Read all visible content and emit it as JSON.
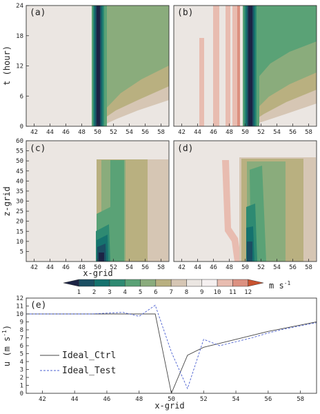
{
  "colormap": {
    "colors": [
      "#1c2445",
      "#1b4f63",
      "#15726e",
      "#2e8a72",
      "#5aa276",
      "#8aac7c",
      "#b9b080",
      "#d6c6b4",
      "#ebe6e2",
      "#f5f0f0",
      "#e8bcb0",
      "#dc9080",
      "#c8522f"
    ],
    "ticks": [
      "1",
      "2",
      "3",
      "4",
      "5",
      "6",
      "7",
      "8",
      "9",
      "10",
      "11",
      "12"
    ],
    "unit_text": "m s",
    "unit_exp": "-1"
  },
  "panels": [
    {
      "id": "a",
      "label": "(a)"
    },
    {
      "id": "b",
      "label": "(b)"
    },
    {
      "id": "c",
      "label": "(c)"
    },
    {
      "id": "d",
      "label": "(d)"
    },
    {
      "id": "e",
      "label": "(e)"
    }
  ],
  "top_axes": {
    "x_ticks": [
      "42",
      "44",
      "46",
      "48",
      "50",
      "52",
      "54",
      "56",
      "58"
    ],
    "y_ticks": [
      "0",
      "6",
      "12",
      "18",
      "24"
    ],
    "ylabel": "t (hour)"
  },
  "mid_axes": {
    "x_ticks": [
      "42",
      "44",
      "46",
      "48",
      "50",
      "52",
      "54",
      "56",
      "58"
    ],
    "y_ticks": [
      "5",
      "10",
      "15",
      "20",
      "25",
      "30",
      "35",
      "40",
      "45",
      "50",
      "55",
      "60"
    ],
    "ylabel": "z-grid",
    "xlabel": "x-grid"
  },
  "chart_data": {
    "type": "line",
    "xlabel": "x-grid",
    "ylabel_text": "u (m s",
    "ylabel_exp": "-1",
    "ylabel_close": ")",
    "xlim": [
      41,
      59
    ],
    "ylim": [
      0,
      12
    ],
    "x_ticks": [
      "42",
      "44",
      "46",
      "48",
      "50",
      "52",
      "54",
      "56",
      "58"
    ],
    "y_ticks": [
      "0",
      "1",
      "2",
      "3",
      "4",
      "5",
      "6",
      "7",
      "8",
      "9",
      "10",
      "11",
      "12"
    ],
    "series": [
      {
        "name": "Ideal_Ctrl",
        "color": "#444444",
        "dash": "solid",
        "x": [
          41,
          42,
          43,
          44,
          45,
          46,
          47,
          48,
          49,
          50,
          51,
          52,
          53,
          54,
          55,
          56,
          57,
          58,
          59
        ],
        "y": [
          10,
          10,
          10,
          10,
          10,
          10,
          10,
          10,
          10,
          0,
          4.8,
          5.8,
          6.3,
          6.8,
          7.3,
          7.8,
          8.2,
          8.6,
          9.0
        ]
      },
      {
        "name": "Ideal_Test",
        "color": "#4a5fd0",
        "dash": "dashed",
        "x": [
          41,
          42,
          43,
          44,
          45,
          46,
          47,
          48,
          49,
          50,
          51,
          52,
          53,
          54,
          55,
          56,
          57,
          58,
          59
        ],
        "y": [
          10,
          10,
          10,
          10,
          10,
          10.1,
          10.2,
          9.7,
          11.1,
          5.2,
          0.6,
          6.8,
          6.0,
          6.5,
          7.0,
          7.6,
          8.1,
          8.5,
          8.9
        ]
      }
    ]
  }
}
